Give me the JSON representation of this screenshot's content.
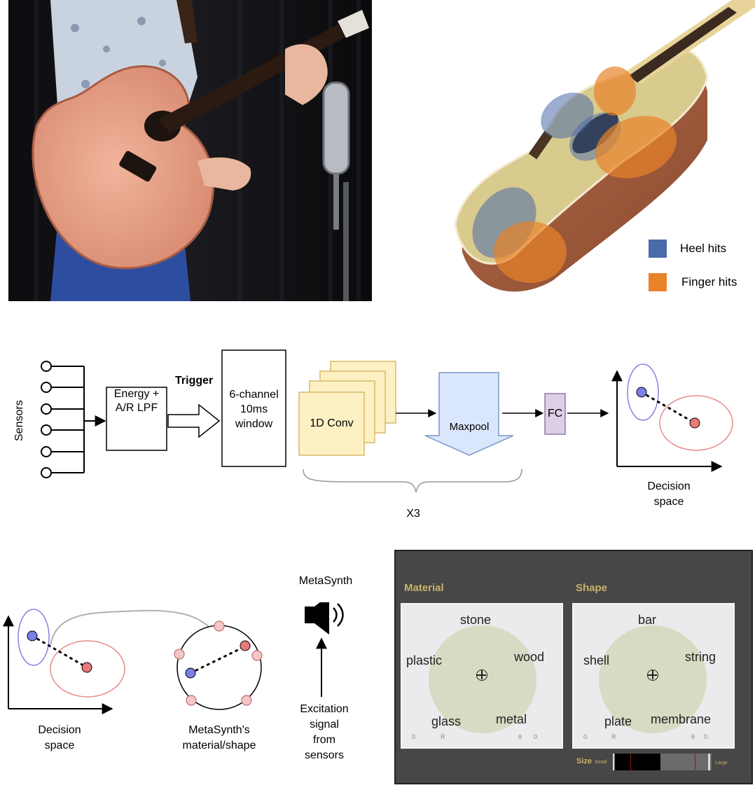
{
  "legend": {
    "heel": {
      "label": "Heel hits",
      "color": "#4a6aa8"
    },
    "finger": {
      "label": "Finger hits",
      "color": "#e8832a"
    }
  },
  "pipeline": {
    "sensors_label": "Sensors",
    "energy_label_line1": "Energy +",
    "energy_label_line2": "A/R LPF",
    "trigger_label": "Trigger",
    "window_line1": "6-channel",
    "window_line2": "10ms",
    "window_line3": "window",
    "conv_label": "1D Conv",
    "maxpool_label": "Maxpool",
    "fc_label": "FC",
    "repeat_label": "X3",
    "decision_line1": "Decision",
    "decision_line2": "space"
  },
  "mapping": {
    "decision_line1": "Decision",
    "decision_line2": "space",
    "metasynth_line1": "MetaSynth's",
    "metasynth_line2": "material/shape",
    "speaker_title": "MetaSynth",
    "excitation_line1": "Excitation",
    "excitation_line2": "signal",
    "excitation_line3": "from",
    "excitation_line4": "sensors"
  },
  "metasynth_ui": {
    "material": {
      "title": "Material",
      "top": "stone",
      "left": "plastic",
      "right": "wood",
      "bottom_left": "glass",
      "bottom_right": "metal",
      "footer_left": "0.",
      "footer_mid": "R",
      "footer_theta": "θ",
      "footer_right": "0."
    },
    "shape": {
      "title": "Shape",
      "top": "bar",
      "left": "shell",
      "right": "string",
      "bottom_left": "plate",
      "bottom_right": "membrane",
      "footer_left": "0.",
      "footer_mid": "R",
      "footer_theta": "θ",
      "footer_right": "0."
    },
    "size": {
      "label": "Size",
      "small": "Small",
      "large": "Large",
      "value": 0.5
    },
    "title_color": "#c8b26a"
  }
}
